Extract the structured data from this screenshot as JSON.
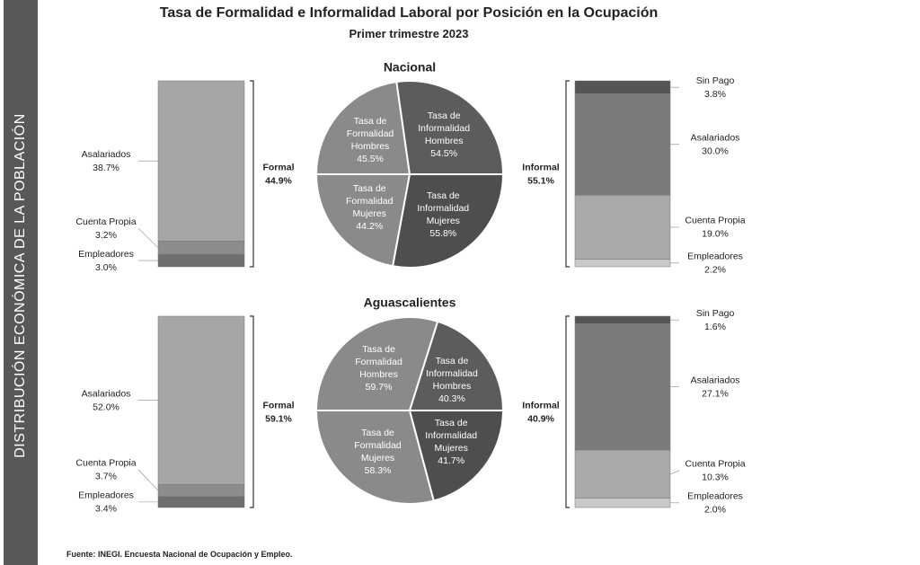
{
  "title": "Tasa de Formalidad e Informalidad Laboral por Posición en la Ocupación",
  "subtitle": "Primer trimestre 2023",
  "side_label": "DISTRIBUCIÓN ECONÓMICA DE LA POBLACIÓN",
  "source": "Fuente: INEGI. Encuesta Nacional de Ocupación y Empleo.",
  "chart_data": [
    {
      "type": "pie",
      "title": "Nacional",
      "categories": [
        "Tasa de Formalidad Hombres",
        "Tasa de Informalidad Hombres",
        "Tasa de Formalidad Mujeres",
        "Tasa de Informalidad Mujeres"
      ],
      "values": [
        45.5,
        54.5,
        44.2,
        55.8
      ],
      "value_labels": [
        "45.5%",
        "54.5%",
        "44.2%",
        "55.8%"
      ],
      "colors": [
        "#8a8a8a",
        "#5c5c5c",
        "#8a8a8a",
        "#4e4e4e"
      ]
    },
    {
      "type": "bar",
      "stacked": true,
      "title": "Formal",
      "total_label": "44.9%",
      "categories": [
        "Asalariados",
        "Cuenta Propia",
        "Empleadores"
      ],
      "values": [
        38.7,
        3.2,
        3.0
      ],
      "value_labels": [
        "38.7%",
        "3.2%",
        "3.0%"
      ],
      "colors": [
        "#a6a6a6",
        "#8c8c8c",
        "#6e6e6e"
      ]
    },
    {
      "type": "bar",
      "stacked": true,
      "title": "Informal",
      "total_label": "55.1%",
      "categories": [
        "Sin Pago",
        "Asalariados",
        "Cuenta Propia",
        "Empleadores"
      ],
      "values": [
        3.8,
        30.0,
        19.0,
        2.2
      ],
      "value_labels": [
        "3.8%",
        "30.0%",
        "19.0%",
        "2.2%"
      ],
      "colors": [
        "#555555",
        "#7b7b7b",
        "#a9a9a9",
        "#c9c9c9"
      ]
    },
    {
      "type": "pie",
      "title": "Aguascalientes",
      "categories": [
        "Tasa de Formalidad Hombres",
        "Tasa de Informalidad Hombres",
        "Tasa de Formalidad Mujeres",
        "Tasa de Informalidad Mujeres"
      ],
      "values": [
        59.7,
        40.3,
        58.3,
        41.7
      ],
      "value_labels": [
        "59.7%",
        "40.3%",
        "58.3%",
        "41.7%"
      ],
      "colors": [
        "#8a8a8a",
        "#5c5c5c",
        "#8a8a8a",
        "#4e4e4e"
      ]
    },
    {
      "type": "bar",
      "stacked": true,
      "title": "Formal",
      "total_label": "59.1%",
      "categories": [
        "Asalariados",
        "Cuenta Propia",
        "Empleadores"
      ],
      "values": [
        52.0,
        3.7,
        3.4
      ],
      "value_labels": [
        "52.0%",
        "3.7%",
        "3.4%"
      ],
      "colors": [
        "#a6a6a6",
        "#8c8c8c",
        "#6e6e6e"
      ]
    },
    {
      "type": "bar",
      "stacked": true,
      "title": "Informal",
      "total_label": "40.9%",
      "categories": [
        "Sin Pago",
        "Asalariados",
        "Cuenta Propia",
        "Empleadores"
      ],
      "values": [
        1.6,
        27.1,
        10.3,
        2.0
      ],
      "value_labels": [
        "1.6%",
        "27.1%",
        "10.3%",
        "2.0%"
      ],
      "colors": [
        "#555555",
        "#7b7b7b",
        "#a9a9a9",
        "#c9c9c9"
      ]
    }
  ]
}
